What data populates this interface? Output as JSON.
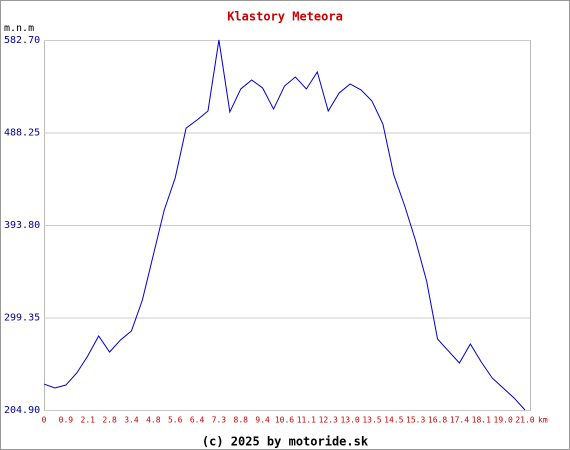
{
  "chart_data": {
    "type": "line",
    "title": "Klastory Meteora",
    "y_label": "m.n.m",
    "x_label": "km",
    "footer": "(c) 2025 by motoride.sk",
    "categories": [
      "0",
      null,
      "0.9",
      null,
      "2.1",
      null,
      "2.8",
      null,
      "3.4",
      null,
      "4.8",
      null,
      "5.6",
      null,
      "6.4",
      null,
      "7.3",
      null,
      "8.8",
      null,
      "9.4",
      null,
      "10.6",
      null,
      "11.1",
      null,
      "12.3",
      null,
      "13.0",
      null,
      "13.5",
      null,
      "14.5",
      null,
      "15.3",
      null,
      "16.8",
      null,
      "17.4",
      null,
      "18.1",
      null,
      "19.0",
      null,
      "21.0"
    ],
    "series": [
      {
        "color": "#0000cc",
        "values": [
          231.4,
          227.4,
          230.4,
          242.7,
          260.0,
          280.5,
          264.1,
          276.4,
          285.6,
          317.2,
          363.2,
          409.1,
          441.8,
          492.8,
          501.0,
          510.2,
          582.7,
          509.2,
          532.7,
          541.9,
          533.7,
          512.2,
          535.7,
          544.9,
          532.7,
          550.1,
          510.2,
          528.6,
          537.8,
          531.7,
          520.4,
          496.9,
          444.8,
          413.2,
          377.5,
          336.6,
          277.4,
          265.1,
          252.9,
          272.3,
          253.9,
          237.6,
          227.4,
          217.2,
          204.9
        ]
      }
    ],
    "ylim": [
      204.9,
      582.7
    ],
    "yticks": [
      {
        "value": 204.9,
        "label": "204.90"
      },
      {
        "value": 299.35,
        "label": "299.35"
      },
      {
        "value": 393.8,
        "label": "393.80"
      },
      {
        "value": 488.25,
        "label": "488.25"
      },
      {
        "value": 582.7,
        "label": "582.70"
      }
    ],
    "grid": true
  }
}
